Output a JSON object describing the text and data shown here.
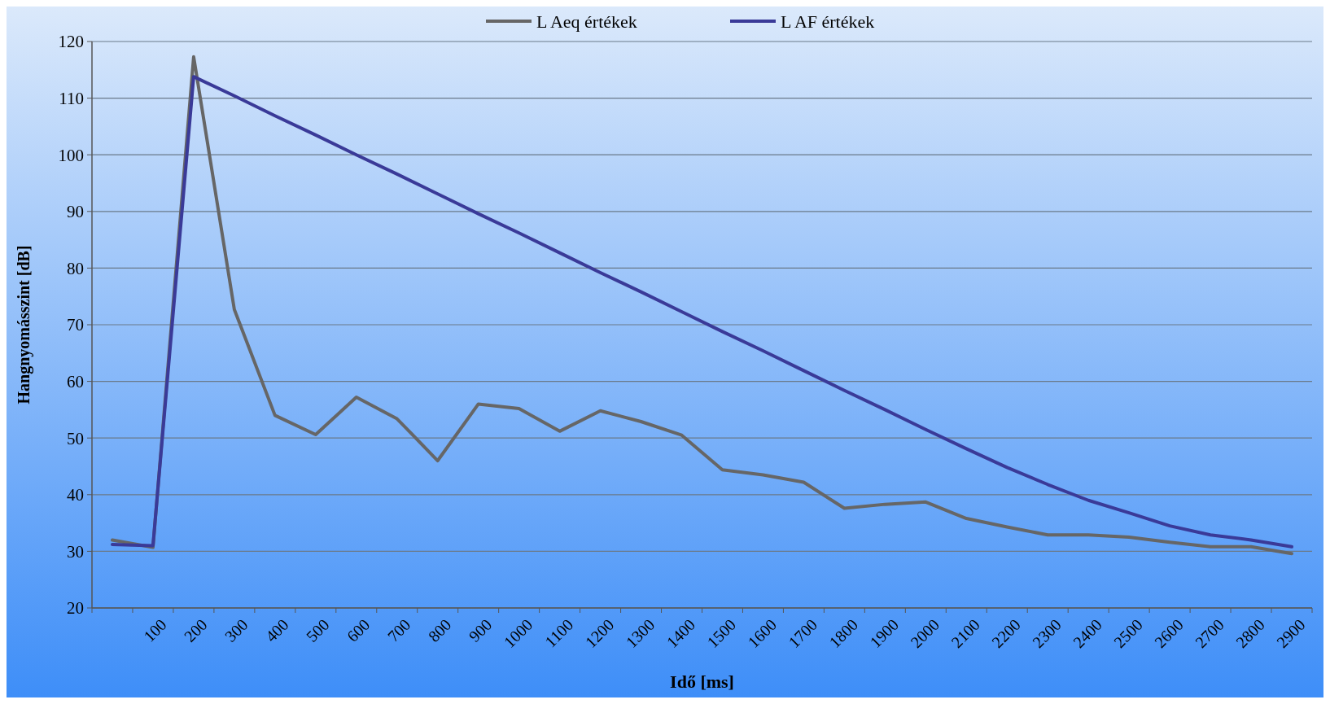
{
  "chart_data": {
    "type": "line",
    "xlabel": "Idő [ms]",
    "ylabel": "Hangnyomásszint  [dB]",
    "categories": [
      null,
      "100",
      "200",
      "300",
      "400",
      "500",
      "600",
      "700",
      "800",
      "900",
      "1000",
      "1100",
      "1200",
      "1300",
      "1400",
      "1500",
      "1600",
      "1700",
      "1800",
      "1900",
      "2000",
      "2100",
      "2200",
      "2300",
      "2400",
      "2500",
      "2600",
      "2700",
      "2800",
      "2900"
    ],
    "series": [
      {
        "name": "L Aeq értékek",
        "color": "#666666",
        "values": [
          32,
          30.7,
          117.3,
          72.7,
          54,
          50.6,
          57.2,
          53.4,
          46,
          56,
          55.2,
          51.2,
          54.8,
          52.9,
          50.5,
          44.4,
          43.5,
          42.2,
          37.6,
          38.3,
          38.7,
          35.8,
          34.3,
          32.9,
          32.9,
          32.5,
          31.6,
          30.8,
          30.8,
          29.6
        ]
      },
      {
        "name": "L AF értékek",
        "color": "#3a3a98",
        "values": [
          31.2,
          31,
          113.8,
          110.4,
          106.9,
          103.5,
          100,
          96.6,
          93.1,
          89.6,
          86.2,
          82.7,
          79.2,
          75.8,
          72.3,
          68.8,
          65.4,
          61.9,
          58.4,
          55,
          51.5,
          48.1,
          44.8,
          41.8,
          39,
          36.8,
          34.5,
          32.9,
          32,
          30.8
        ]
      }
    ],
    "ylim": [
      20,
      120
    ],
    "yticks": [
      20,
      30,
      40,
      50,
      60,
      70,
      80,
      90,
      100,
      110,
      120
    ],
    "grid": "y",
    "legend": "top",
    "marker": "none",
    "line_style": "solid"
  }
}
